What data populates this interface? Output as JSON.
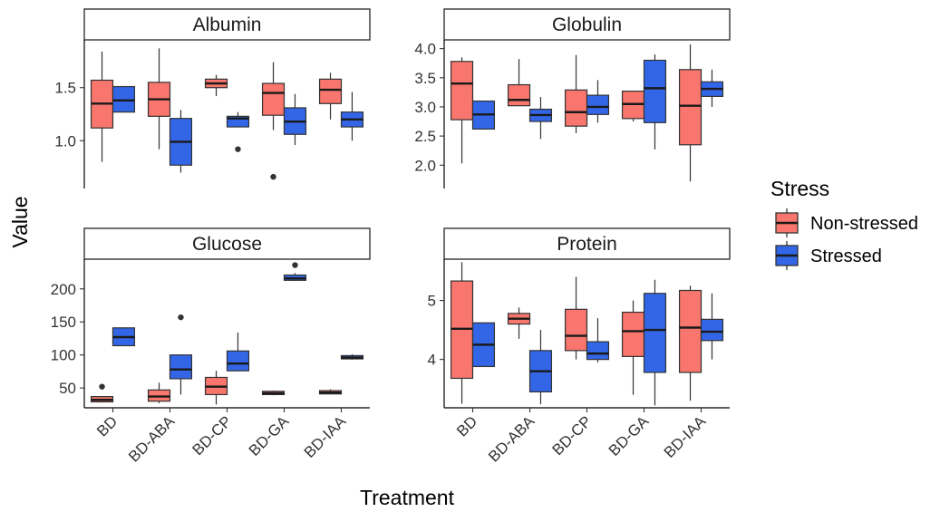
{
  "chart_data": {
    "type": "box",
    "xlabel": "Treatment",
    "ylabel": "Value",
    "categories": [
      "BD",
      "BD-ABA",
      "BD-CP",
      "BD-GA",
      "BD-IAA"
    ],
    "legend": {
      "title": "Stress",
      "placement": "right",
      "entries": [
        {
          "label": "Non-stressed",
          "color": "#F8766D"
        },
        {
          "label": "Stressed",
          "color": "#3366E6"
        }
      ]
    },
    "grid": false,
    "panels": [
      {
        "title": "Albumin",
        "ylim": [
          0.55,
          1.95
        ],
        "yticks": [
          1.0,
          1.5
        ],
        "ytick_labels": [
          "1.0",
          "1.5"
        ],
        "series": [
          {
            "name": "Non-stressed",
            "boxes": [
              {
                "min": 0.8,
                "q1": 1.12,
                "median": 1.35,
                "q3": 1.57,
                "max": 1.84,
                "outliers": []
              },
              {
                "min": 0.92,
                "q1": 1.23,
                "median": 1.39,
                "q3": 1.55,
                "max": 1.87,
                "outliers": []
              },
              {
                "min": 1.42,
                "q1": 1.5,
                "median": 1.54,
                "q3": 1.58,
                "max": 1.62,
                "outliers": []
              },
              {
                "min": 1.1,
                "q1": 1.24,
                "median": 1.45,
                "q3": 1.54,
                "max": 1.74,
                "outliers": [
                  0.66
                ]
              },
              {
                "min": 1.2,
                "q1": 1.35,
                "median": 1.48,
                "q3": 1.58,
                "max": 1.64,
                "outliers": []
              }
            ]
          },
          {
            "name": "Stressed",
            "boxes": [
              {
                "min": 1.27,
                "q1": 1.27,
                "median": 1.38,
                "q3": 1.51,
                "max": 1.51,
                "outliers": []
              },
              {
                "min": 0.7,
                "q1": 0.77,
                "median": 0.99,
                "q3": 1.21,
                "max": 1.29,
                "outliers": []
              },
              {
                "min": 1.13,
                "q1": 1.13,
                "median": 1.21,
                "q3": 1.23,
                "max": 1.27,
                "outliers": [
                  0.92
                ]
              },
              {
                "min": 0.96,
                "q1": 1.06,
                "median": 1.18,
                "q3": 1.31,
                "max": 1.44,
                "outliers": []
              },
              {
                "min": 1.0,
                "q1": 1.13,
                "median": 1.2,
                "q3": 1.27,
                "max": 1.46,
                "outliers": []
              }
            ]
          }
        ]
      },
      {
        "title": "Globulin",
        "ylim": [
          1.6,
          4.15
        ],
        "yticks": [
          2.0,
          2.5,
          3.0,
          3.5,
          4.0
        ],
        "ytick_labels": [
          "2.0",
          "2.5",
          "3.0",
          "3.5",
          "4.0"
        ],
        "series": [
          {
            "name": "Non-stressed",
            "boxes": [
              {
                "min": 2.03,
                "q1": 2.78,
                "median": 3.4,
                "q3": 3.78,
                "max": 3.85,
                "outliers": []
              },
              {
                "min": 3.02,
                "q1": 3.02,
                "median": 3.12,
                "q3": 3.38,
                "max": 3.82,
                "outliers": []
              },
              {
                "min": 2.55,
                "q1": 2.67,
                "median": 2.91,
                "q3": 3.29,
                "max": 3.89,
                "outliers": []
              },
              {
                "min": 2.75,
                "q1": 2.8,
                "median": 3.05,
                "q3": 3.27,
                "max": 3.27,
                "outliers": []
              },
              {
                "min": 1.72,
                "q1": 2.35,
                "median": 3.02,
                "q3": 3.64,
                "max": 4.07,
                "outliers": []
              }
            ]
          },
          {
            "name": "Stressed",
            "boxes": [
              {
                "min": 2.62,
                "q1": 2.62,
                "median": 2.87,
                "q3": 3.1,
                "max": 3.1,
                "outliers": []
              },
              {
                "min": 2.45,
                "q1": 2.75,
                "median": 2.86,
                "q3": 2.96,
                "max": 3.17,
                "outliers": []
              },
              {
                "min": 2.73,
                "q1": 2.87,
                "median": 3.0,
                "q3": 3.2,
                "max": 3.46,
                "outliers": []
              },
              {
                "min": 2.27,
                "q1": 2.73,
                "median": 3.32,
                "q3": 3.8,
                "max": 3.9,
                "outliers": []
              },
              {
                "min": 3.0,
                "q1": 3.18,
                "median": 3.31,
                "q3": 3.43,
                "max": 3.64,
                "outliers": []
              }
            ]
          }
        ]
      },
      {
        "title": "Glucose",
        "ylim": [
          20,
          245
        ],
        "yticks": [
          50,
          100,
          150,
          200
        ],
        "ytick_labels": [
          "50",
          "100",
          "150",
          "200"
        ],
        "series": [
          {
            "name": "Non-stressed",
            "boxes": [
              {
                "min": 28,
                "q1": 29,
                "median": 32,
                "q3": 37,
                "max": 38,
                "outliers": [
                  52
                ]
              },
              {
                "min": 27,
                "q1": 30,
                "median": 37,
                "q3": 47,
                "max": 58,
                "outliers": []
              },
              {
                "min": 25,
                "q1": 40,
                "median": 52,
                "q3": 66,
                "max": 76,
                "outliers": []
              },
              {
                "min": 39,
                "q1": 40,
                "median": 42,
                "q3": 45,
                "max": 46,
                "outliers": []
              },
              {
                "min": 40,
                "q1": 41,
                "median": 43,
                "q3": 46,
                "max": 48,
                "outliers": []
              }
            ]
          },
          {
            "name": "Stressed",
            "boxes": [
              {
                "min": 114,
                "q1": 114,
                "median": 127,
                "q3": 141,
                "max": 141,
                "outliers": []
              },
              {
                "min": 40,
                "q1": 64,
                "median": 78,
                "q3": 100,
                "max": 100,
                "outliers": [
                  157
                ]
              },
              {
                "min": 75,
                "q1": 76,
                "median": 87,
                "q3": 106,
                "max": 134,
                "outliers": []
              },
              {
                "min": 212,
                "q1": 213,
                "median": 216,
                "q3": 221,
                "max": 224,
                "outliers": [
                  236
                ]
              },
              {
                "min": 93,
                "q1": 94,
                "median": 96,
                "q3": 99,
                "max": 101,
                "outliers": []
              }
            ]
          }
        ]
      },
      {
        "title": "Protein",
        "ylim": [
          3.18,
          5.7
        ],
        "yticks": [
          4,
          5
        ],
        "ytick_labels": [
          "4",
          "5"
        ],
        "series": [
          {
            "name": "Non-stressed",
            "boxes": [
              {
                "min": 3.25,
                "q1": 3.68,
                "median": 4.52,
                "q3": 5.33,
                "max": 5.65,
                "outliers": []
              },
              {
                "min": 4.35,
                "q1": 4.6,
                "median": 4.69,
                "q3": 4.78,
                "max": 4.88,
                "outliers": []
              },
              {
                "min": 4.0,
                "q1": 4.15,
                "median": 4.4,
                "q3": 4.85,
                "max": 5.4,
                "outliers": []
              },
              {
                "min": 3.4,
                "q1": 4.05,
                "median": 4.48,
                "q3": 4.8,
                "max": 5.0,
                "outliers": []
              },
              {
                "min": 3.3,
                "q1": 3.78,
                "median": 4.54,
                "q3": 5.17,
                "max": 5.25,
                "outliers": []
              }
            ]
          },
          {
            "name": "Stressed",
            "boxes": [
              {
                "min": 3.88,
                "q1": 3.88,
                "median": 4.25,
                "q3": 4.62,
                "max": 4.62,
                "outliers": []
              },
              {
                "min": 3.24,
                "q1": 3.45,
                "median": 3.8,
                "q3": 4.15,
                "max": 4.5,
                "outliers": []
              },
              {
                "min": 3.95,
                "q1": 4.0,
                "median": 4.1,
                "q3": 4.3,
                "max": 4.7,
                "outliers": []
              },
              {
                "min": 3.22,
                "q1": 3.78,
                "median": 4.5,
                "q3": 5.12,
                "max": 5.35,
                "outliers": []
              },
              {
                "min": 4.0,
                "q1": 4.32,
                "median": 4.47,
                "q3": 4.68,
                "max": 5.12,
                "outliers": []
              }
            ]
          }
        ]
      }
    ]
  }
}
